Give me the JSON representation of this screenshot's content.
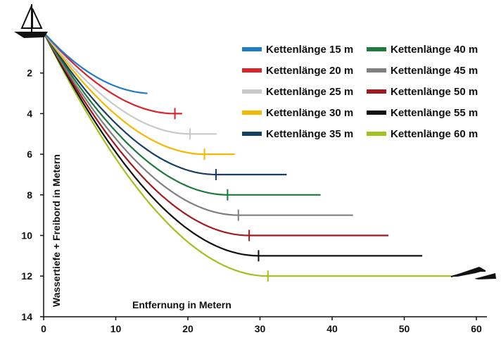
{
  "chart_data": {
    "type": "line",
    "xlabel": "Entfernung in Metern",
    "ylabel": "Wassertiefe + Freibord in Metern",
    "xlim": [
      0,
      60
    ],
    "ylim": [
      0,
      14
    ],
    "y_inverted": true,
    "x_ticks": [
      0,
      10,
      20,
      30,
      40,
      50,
      60
    ],
    "y_ticks": [
      2,
      4,
      6,
      8,
      10,
      12,
      14
    ],
    "grid": false,
    "legend_position": "top-right",
    "icons": [
      "sailboat-icon",
      "anchor-icon"
    ],
    "series": [
      {
        "name": "Kettenlänge 15 m",
        "color": "#1f7cc8",
        "depth": 3,
        "touchdown": null,
        "end": 14.4
      },
      {
        "name": "Kettenlänge 20 m",
        "color": "#d9252a",
        "depth": 4,
        "touchdown": 18.2,
        "end": 19.2
      },
      {
        "name": "Kettenlänge 25 m",
        "color": "#c9c9c9",
        "depth": 5,
        "touchdown": 20.3,
        "end": 24.0
      },
      {
        "name": "Kettenlänge 30 m",
        "color": "#f5b800",
        "depth": 6,
        "touchdown": 22.3,
        "end": 26.5
      },
      {
        "name": "Kettenlänge 35 m",
        "color": "#163f66",
        "depth": 7,
        "touchdown": 23.9,
        "end": 33.7
      },
      {
        "name": "Kettenlänge 40 m",
        "color": "#1d7a3a",
        "depth": 8,
        "touchdown": 25.5,
        "end": 38.4
      },
      {
        "name": "Kettenlänge 45 m",
        "color": "#808080",
        "depth": 9,
        "touchdown": 27.0,
        "end": 42.9
      },
      {
        "name": "Kettenlänge 50 m",
        "color": "#a3191d",
        "depth": 10,
        "touchdown": 28.5,
        "end": 47.8
      },
      {
        "name": "Kettenlänge 55 m",
        "color": "#111111",
        "depth": 11,
        "touchdown": 29.8,
        "end": 52.5
      },
      {
        "name": "Kettenlänge 60 m",
        "color": "#9fc21e",
        "depth": 12,
        "touchdown": 31.1,
        "end": 56.5
      }
    ]
  }
}
